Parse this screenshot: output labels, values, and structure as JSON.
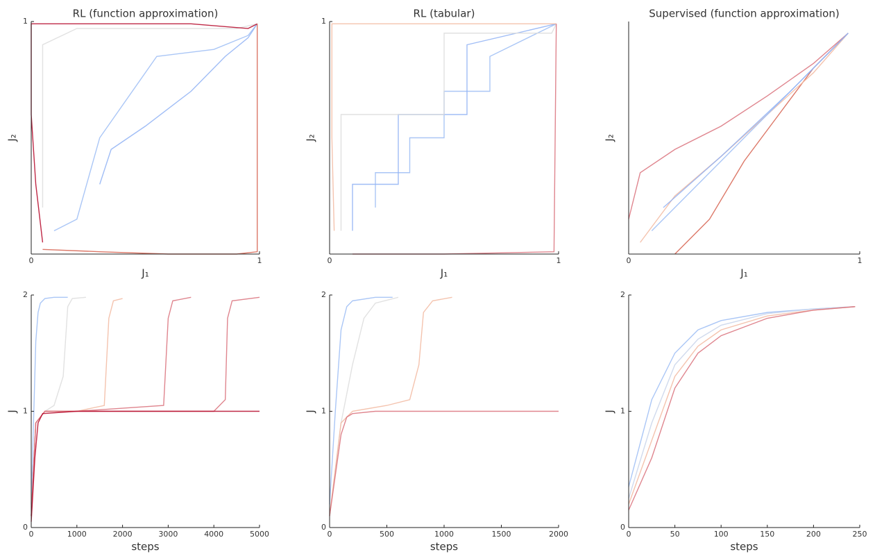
{
  "chart_data": [
    {
      "type": "line",
      "title": "RL (function approximation)",
      "xlabel": "J₁",
      "ylabel": "J₂",
      "xlim": [
        0,
        1
      ],
      "ylim": [
        0,
        1
      ],
      "xticks": [
        0,
        1
      ],
      "yticks": [
        1
      ],
      "series": [
        {
          "color": "#8fb1f4",
          "x": [
            0.3,
            0.35,
            0.5,
            0.7,
            0.85,
            0.95,
            0.99
          ],
          "values": [
            0.3,
            0.45,
            0.55,
            0.7,
            0.85,
            0.93,
            0.99
          ]
        },
        {
          "color": "#9bbcf5",
          "x": [
            0.1,
            0.2,
            0.3,
            0.55,
            0.8,
            0.95,
            0.99
          ],
          "values": [
            0.1,
            0.15,
            0.5,
            0.85,
            0.88,
            0.94,
            0.99
          ]
        },
        {
          "color": "#dcdcdc",
          "x": [
            0.05,
            0.05,
            0.2,
            0.6,
            0.9,
            0.99
          ],
          "values": [
            0.2,
            0.9,
            0.97,
            0.97,
            0.97,
            0.99
          ]
        },
        {
          "color": "#b40426",
          "x": [
            0.05,
            0.02,
            0.0,
            0.0,
            0.0,
            0.3,
            0.7,
            0.95,
            0.99
          ],
          "values": [
            0.05,
            0.3,
            0.6,
            0.9,
            0.99,
            0.99,
            0.99,
            0.97,
            0.99
          ]
        },
        {
          "color": "#d6604d",
          "x": [
            0.05,
            0.3,
            0.6,
            0.9,
            0.99,
            0.99,
            0.99
          ],
          "values": [
            0.02,
            0.01,
            0.0,
            0.0,
            0.01,
            0.5,
            0.99
          ]
        }
      ]
    },
    {
      "type": "line",
      "title": "RL (tabular)",
      "xlabel": "J₁",
      "ylabel": "J₂",
      "xlim": [
        0,
        1
      ],
      "ylim": [
        0,
        1
      ],
      "xticks": [
        0,
        1
      ],
      "yticks": [
        1
      ],
      "series": [
        {
          "color": "#9bbcf5",
          "x": [
            0.2,
            0.2,
            0.35,
            0.35,
            0.5,
            0.5,
            0.7,
            0.7,
            0.99
          ],
          "values": [
            0.2,
            0.35,
            0.35,
            0.5,
            0.5,
            0.7,
            0.7,
            0.85,
            0.99
          ]
        },
        {
          "color": "#8fb1f4",
          "x": [
            0.1,
            0.1,
            0.3,
            0.3,
            0.6,
            0.6,
            0.99
          ],
          "values": [
            0.1,
            0.3,
            0.3,
            0.6,
            0.6,
            0.9,
            0.99
          ]
        },
        {
          "color": "#dcdcdc",
          "x": [
            0.05,
            0.05,
            0.5,
            0.5,
            0.97,
            0.99
          ],
          "values": [
            0.1,
            0.6,
            0.6,
            0.95,
            0.95,
            0.99
          ]
        },
        {
          "color": "#f2b8a0",
          "x": [
            0.02,
            0.01,
            0.01,
            0.5,
            0.99
          ],
          "values": [
            0.1,
            0.5,
            0.99,
            0.99,
            0.99
          ]
        },
        {
          "color": "#d9707a",
          "x": [
            0.1,
            0.5,
            0.98,
            0.99
          ],
          "values": [
            0.0,
            0.0,
            0.01,
            0.99
          ]
        }
      ]
    },
    {
      "type": "line",
      "title": "Supervised (function approximation)",
      "xlabel": "J₁",
      "ylabel": "J₂",
      "xlim": [
        0,
        1
      ],
      "ylim": [
        0,
        1
      ],
      "xticks": [
        0,
        1
      ],
      "series": [
        {
          "color": "#d9707a",
          "x": [
            0.0,
            0.05,
            0.2,
            0.4,
            0.6,
            0.8,
            0.95
          ],
          "values": [
            0.15,
            0.35,
            0.45,
            0.55,
            0.68,
            0.82,
            0.95
          ]
        },
        {
          "color": "#d6604d",
          "x": [
            0.2,
            0.35,
            0.5,
            0.65,
            0.8,
            0.95
          ],
          "values": [
            0.0,
            0.15,
            0.4,
            0.6,
            0.8,
            0.95
          ]
        },
        {
          "color": "#f2b8a0",
          "x": [
            0.05,
            0.2,
            0.4,
            0.6,
            0.8,
            0.95
          ],
          "values": [
            0.05,
            0.25,
            0.42,
            0.6,
            0.78,
            0.95
          ]
        },
        {
          "color": "#9bbcf5",
          "x": [
            0.1,
            0.3,
            0.5,
            0.7,
            0.95
          ],
          "values": [
            0.1,
            0.3,
            0.5,
            0.7,
            0.95
          ]
        },
        {
          "color": "#8fb1f4",
          "x": [
            0.15,
            0.4,
            0.7,
            0.95
          ],
          "values": [
            0.2,
            0.42,
            0.7,
            0.95
          ]
        }
      ]
    },
    {
      "type": "line",
      "xlabel": "steps",
      "ylabel": "J",
      "xlim": [
        0,
        5000
      ],
      "ylim": [
        0,
        2
      ],
      "xticks": [
        0,
        1000,
        2000,
        3000,
        4000,
        5000
      ],
      "yticks": [
        0,
        1,
        2
      ],
      "series": [
        {
          "color": "#9bbcf5",
          "x": [
            0,
            50,
            100,
            150,
            200,
            300,
            500,
            800
          ],
          "values": [
            0.2,
            0.9,
            1.6,
            1.85,
            1.93,
            1.97,
            1.98,
            1.98
          ]
        },
        {
          "color": "#dcdcdc",
          "x": [
            0,
            100,
            300,
            500,
            700,
            800,
            900,
            1200
          ],
          "values": [
            0.1,
            0.9,
            1.0,
            1.05,
            1.3,
            1.9,
            1.97,
            1.98
          ]
        },
        {
          "color": "#f2b8a0",
          "x": [
            0,
            100,
            300,
            1000,
            1600,
            1700,
            1800,
            2000
          ],
          "values": [
            0.1,
            0.9,
            1.0,
            1.0,
            1.05,
            1.8,
            1.95,
            1.97
          ]
        },
        {
          "color": "#d9707a",
          "x": [
            0,
            100,
            300,
            1000,
            2900,
            3000,
            3100,
            3500
          ],
          "values": [
            0.1,
            0.9,
            1.0,
            1.0,
            1.05,
            1.8,
            1.95,
            1.98
          ]
        },
        {
          "color": "#d9707a",
          "x": [
            0,
            100,
            300,
            4000,
            4250,
            4300,
            4400,
            5000
          ],
          "values": [
            0.1,
            0.9,
            1.0,
            1.0,
            1.1,
            1.8,
            1.95,
            1.98
          ]
        },
        {
          "color": "#b40426",
          "x": [
            0,
            80,
            150,
            250,
            1000,
            3000,
            5000
          ],
          "values": [
            0.05,
            0.6,
            0.9,
            0.98,
            1.0,
            1.0,
            1.0
          ]
        }
      ]
    },
    {
      "type": "line",
      "xlabel": "steps",
      "ylabel": "J",
      "xlim": [
        0,
        2000
      ],
      "ylim": [
        0,
        2
      ],
      "xticks": [
        0,
        500,
        1000,
        1500,
        2000
      ],
      "yticks": [
        0,
        1,
        2
      ],
      "series": [
        {
          "color": "#9bbcf5",
          "x": [
            0,
            50,
            100,
            150,
            200,
            400,
            550
          ],
          "values": [
            0.2,
            1.0,
            1.7,
            1.9,
            1.95,
            1.98,
            1.98
          ]
        },
        {
          "color": "#dcdcdc",
          "x": [
            0,
            100,
            200,
            300,
            400,
            600
          ],
          "values": [
            0.1,
            0.9,
            1.4,
            1.8,
            1.93,
            1.98
          ]
        },
        {
          "color": "#f2b8a0",
          "x": [
            0,
            100,
            200,
            500,
            700,
            780,
            820,
            900,
            1070
          ],
          "values": [
            0.1,
            0.9,
            1.0,
            1.05,
            1.1,
            1.4,
            1.85,
            1.95,
            1.98
          ]
        },
        {
          "color": "#d9707a",
          "x": [
            0,
            100,
            150,
            200,
            400,
            1000,
            2000
          ],
          "values": [
            0.1,
            0.8,
            0.95,
            0.98,
            1.0,
            1.0,
            1.0
          ]
        }
      ]
    },
    {
      "type": "line",
      "xlabel": "steps",
      "ylabel": "J",
      "xlim": [
        0,
        250
      ],
      "ylim": [
        0,
        2
      ],
      "xticks": [
        0,
        50,
        100,
        150,
        200,
        250
      ],
      "yticks": [
        0,
        1,
        2
      ],
      "series": [
        {
          "color": "#9bbcf5",
          "x": [
            0,
            25,
            50,
            75,
            100,
            150,
            200,
            245
          ],
          "values": [
            0.35,
            1.1,
            1.5,
            1.7,
            1.78,
            1.85,
            1.88,
            1.9
          ]
        },
        {
          "color": "#c8d4ea",
          "x": [
            0,
            25,
            50,
            75,
            100,
            150,
            200,
            245
          ],
          "values": [
            0.25,
            0.9,
            1.4,
            1.62,
            1.74,
            1.84,
            1.88,
            1.9
          ]
        },
        {
          "color": "#f2b8a0",
          "x": [
            0,
            25,
            50,
            75,
            100,
            150,
            200,
            245
          ],
          "values": [
            0.2,
            0.75,
            1.3,
            1.56,
            1.7,
            1.82,
            1.87,
            1.9
          ]
        },
        {
          "color": "#d9707a",
          "x": [
            0,
            25,
            50,
            75,
            100,
            150,
            200,
            245
          ],
          "values": [
            0.15,
            0.6,
            1.2,
            1.5,
            1.65,
            1.8,
            1.87,
            1.9
          ]
        }
      ]
    }
  ]
}
